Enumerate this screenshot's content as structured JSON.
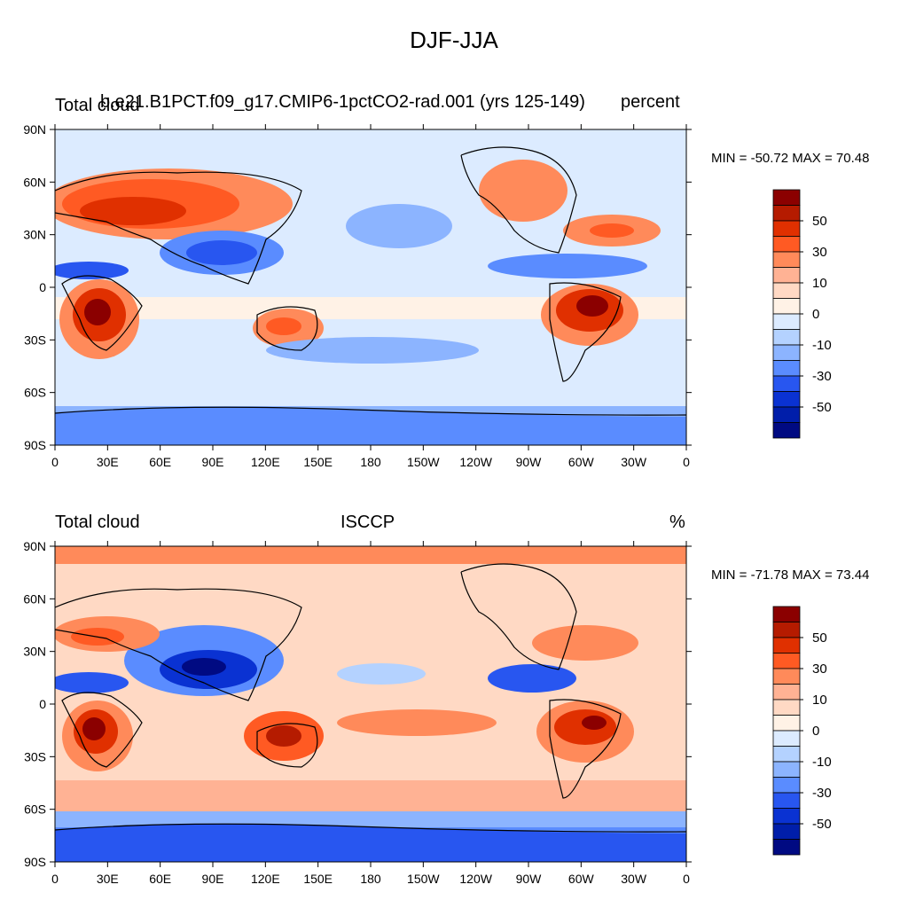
{
  "figure_title": "DJF-JJA",
  "panels": [
    {
      "left_title": "Total cloud",
      "center_title": "b.e21.B1PCT.f09_g17.CMIP6-1pctCO2-rad.001 (yrs 125-149)",
      "right_title": "percent",
      "minmax_text": "MIN = -50.72 MAX =  70.48"
    },
    {
      "left_title": "Total cloud",
      "center_title": "ISCCP",
      "right_title": "%",
      "minmax_text": "MIN = -71.78 MAX =  73.44"
    }
  ],
  "axes": {
    "lat_labels": [
      "90N",
      "60N",
      "30N",
      "0",
      "30S",
      "60S",
      "90S"
    ],
    "lon_labels": [
      "0",
      "30E",
      "60E",
      "90E",
      "120E",
      "150E",
      "180",
      "150W",
      "120W",
      "90W",
      "60W",
      "30W",
      "0"
    ]
  },
  "colorbar": {
    "labels": [
      "50",
      "30",
      "10",
      "0",
      "-10",
      "-30",
      "-50"
    ],
    "colors": [
      "#8b0000",
      "#b51b00",
      "#e03000",
      "#ff5a23",
      "#ff8a5a",
      "#ffb294",
      "#ffd9c4",
      "#fff2e6",
      "#dcebff",
      "#b4d2ff",
      "#8cb4ff",
      "#5a8cff",
      "#2856f0",
      "#0a32d2",
      "#001eaa",
      "#000a82"
    ]
  },
  "colors": {
    "land_outline": "#000000",
    "ocean_background": "#dcebff"
  }
}
